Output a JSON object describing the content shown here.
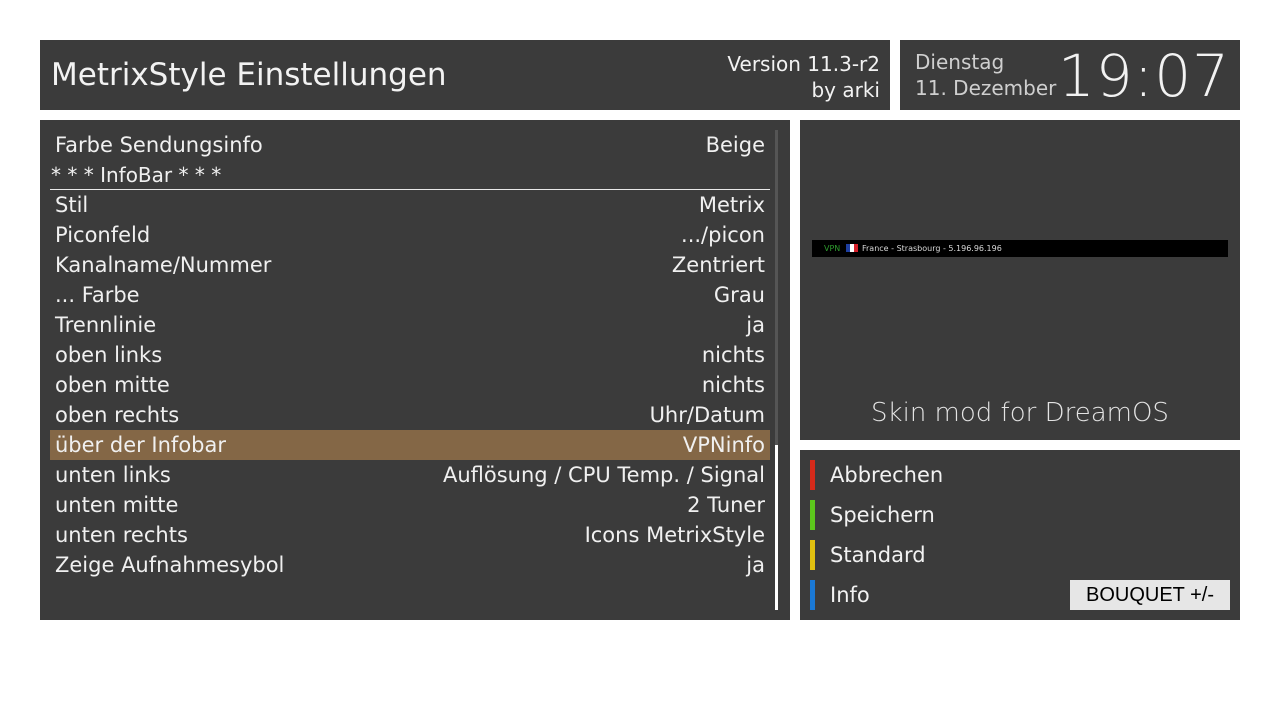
{
  "header": {
    "title": "MetrixStyle Einstellungen",
    "version": "Version 11.3-r2",
    "author": "by arki"
  },
  "clock": {
    "day": "Dienstag",
    "date": "11. Dezember",
    "time": "19:07"
  },
  "settings": {
    "rows": [
      {
        "label": "Farbe Sendungsinfo",
        "value": "Beige"
      },
      {
        "label": "* * * InfoBar * * *",
        "value": ""
      },
      {
        "label": "Stil",
        "value": "Metrix"
      },
      {
        "label": "Piconfeld",
        "value": ".../picon"
      },
      {
        "label": "Kanalname/Nummer",
        "value": "Zentriert"
      },
      {
        "label": "... Farbe",
        "value": "Grau"
      },
      {
        "label": "Trennlinie",
        "value": "ja"
      },
      {
        "label": "oben links",
        "value": "nichts"
      },
      {
        "label": "oben mitte",
        "value": "nichts"
      },
      {
        "label": "oben rechts",
        "value": "Uhr/Datum"
      },
      {
        "label": "über der Infobar",
        "value": "VPNinfo"
      },
      {
        "label": "unten links",
        "value": "Auflösung / CPU Temp. / Signal"
      },
      {
        "label": "unten mitte",
        "value": "2 Tuner"
      },
      {
        "label": "unten rechts",
        "value": "Icons MetrixStyle"
      },
      {
        "label": "Zeige Aufnahmesybol",
        "value": "ja"
      }
    ],
    "selected_index": 10
  },
  "preview": {
    "vpn_label": "VPN",
    "vpn_location": "France - Strasbourg - 5.196.96.196",
    "flag_icon": "france-flag-icon",
    "caption": "Skin mod for DreamOS"
  },
  "buttons": {
    "red": {
      "label": "Abbrechen",
      "color": "#d42a1a"
    },
    "green": {
      "label": "Speichern",
      "color": "#5cc61c"
    },
    "yellow": {
      "label": "Standard",
      "color": "#e0c010"
    },
    "blue": {
      "label": "Info",
      "color": "#1a78d4"
    },
    "bouquet": "BOUQUET +/-"
  },
  "colors": {
    "panel": "#3b3b3b",
    "selection": "#846746"
  }
}
